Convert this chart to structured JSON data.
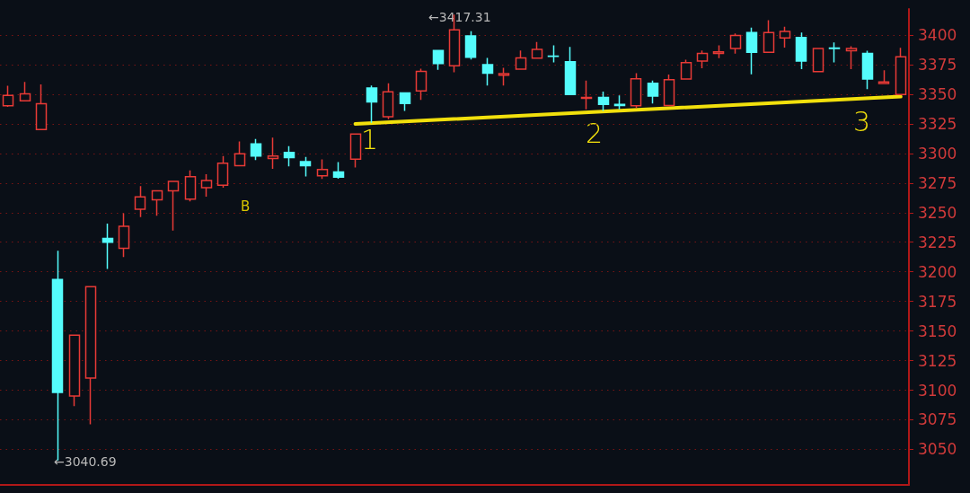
{
  "chart_data": {
    "type": "candlestick",
    "categories": [
      null,
      null,
      null,
      null,
      null,
      null,
      null,
      null,
      null,
      null,
      null,
      null,
      null,
      null,
      null,
      null,
      null,
      null,
      null,
      null,
      null,
      null,
      null,
      null,
      null,
      null,
      null,
      null,
      null,
      null,
      null,
      null,
      null,
      null,
      null,
      null,
      null,
      null,
      null,
      null,
      null,
      null,
      null,
      null,
      null,
      null,
      null,
      null,
      null,
      null,
      null,
      null,
      null,
      null,
      null
    ],
    "ohlc": [
      [
        3340.3,
        3357.2,
        3339.3,
        3349.0
      ],
      [
        3344.5,
        3360.4,
        3344.5,
        3350.3
      ],
      [
        3320.2,
        3358.3,
        3320.2,
        3341.9
      ],
      [
        3193.5,
        3217.8,
        3040.69,
        3098.1
      ],
      [
        3095.0,
        3146.5,
        3086.5,
        3146.5
      ],
      [
        3110.3,
        3187.4,
        3071.2,
        3187.4
      ],
      [
        3228.3,
        3240.8,
        3202.5,
        3224.9
      ],
      [
        3219.9,
        3249.5,
        3212.5,
        3238.4
      ],
      [
        3252.9,
        3272.4,
        3246.3,
        3263.2
      ],
      [
        3260.8,
        3268.5,
        3247.4,
        3268.5
      ],
      [
        3268.5,
        3276.4,
        3234.9,
        3276.4
      ],
      [
        3261.3,
        3285.6,
        3259.5,
        3280.4
      ],
      [
        3271.1,
        3282.5,
        3263.5,
        3277.2
      ],
      [
        3273.2,
        3297.8,
        3271.1,
        3291.7
      ],
      [
        3289.6,
        3310.2,
        3289.6,
        3299.6
      ],
      [
        3308.1,
        3312.3,
        3294.4,
        3297.8
      ],
      [
        3295.7,
        3313.4,
        3287.0,
        3297.8
      ],
      [
        3300.9,
        3306.2,
        3289.1,
        3296.5
      ],
      [
        3293.0,
        3297.0,
        3280.6,
        3289.6
      ],
      [
        3281.2,
        3294.9,
        3278.5,
        3286.4
      ],
      [
        3284.4,
        3292.7,
        3278.6,
        3279.9
      ],
      [
        3295.2,
        3316.3,
        3288.2,
        3316.3
      ],
      [
        3355.3,
        3357.3,
        3325.9,
        3343.5
      ],
      [
        3330.9,
        3359.3,
        3328.9,
        3352.0
      ],
      [
        3351.0,
        3351.0,
        3335.9,
        3342.2
      ],
      [
        3352.8,
        3371.6,
        3345.2,
        3369.3
      ],
      [
        3386.9,
        3386.9,
        3370.6,
        3375.9
      ],
      [
        3374.1,
        3417.31,
        3368.6,
        3404.3
      ],
      [
        3399.2,
        3403.3,
        3379.4,
        3381.2
      ],
      [
        3374.9,
        3380.6,
        3357.3,
        3367.8
      ],
      [
        3366.1,
        3372.4,
        3357.3,
        3367.3
      ],
      [
        3371.1,
        3386.9,
        3371.1,
        3380.6
      ],
      [
        3380.4,
        3394.2,
        3380.4,
        3387.9
      ],
      [
        3382.2,
        3391.2,
        3376.9,
        3381.9
      ],
      [
        3377.4,
        3390.0,
        3349.7,
        3349.7
      ],
      [
        3346.5,
        3361.6,
        3337.2,
        3347.2
      ],
      [
        3347.2,
        3352.3,
        3335.9,
        3341.4
      ],
      [
        3341.4,
        3349.0,
        3337.2,
        3340.4
      ],
      [
        3340.2,
        3367.8,
        3338.4,
        3363.1
      ],
      [
        3359.3,
        3361.6,
        3342.2,
        3348.5
      ],
      [
        3340.4,
        3366.6,
        3340.4,
        3362.3
      ],
      [
        3362.8,
        3379.1,
        3362.8,
        3376.6
      ],
      [
        3378.1,
        3386.9,
        3371.9,
        3384.4
      ],
      [
        3384.4,
        3391.2,
        3380.4,
        3385.7
      ],
      [
        3388.7,
        3401.3,
        3384.2,
        3399.7
      ],
      [
        3402.0,
        3406.3,
        3366.8,
        3385.4
      ],
      [
        3385.4,
        3412.6,
        3385.4,
        3402.0
      ],
      [
        3397.5,
        3407.0,
        3389.4,
        3403.0
      ],
      [
        3398.0,
        3402.0,
        3371.1,
        3378.1
      ],
      [
        3369.1,
        3388.7,
        3369.1,
        3388.7
      ],
      [
        3389.0,
        3393.7,
        3376.9,
        3388.7
      ],
      [
        3386.7,
        3390.5,
        3371.1,
        3388.7
      ],
      [
        3384.4,
        3386.7,
        3354.3,
        3362.8
      ],
      [
        3359.0,
        3370.3,
        3359.0,
        3360.3
      ],
      [
        3349.7,
        3389.2,
        3349.7,
        3381.7
      ]
    ],
    "colors": [
      "#e83a36",
      "#e83a36",
      "#e83a36",
      "#54fcfc",
      "#e83a36",
      "#e83a36",
      "#54fcfc",
      "#e83a36",
      "#e83a36",
      "#e83a36",
      "#e83a36",
      "#e83a36",
      "#e83a36",
      "#e83a36",
      "#e83a36",
      "#54fcfc",
      "#e83a36",
      "#54fcfc",
      "#54fcfc",
      "#e83a36",
      "#54fcfc",
      "#e83a36",
      "#54fcfc",
      "#e83a36",
      "#54fcfc",
      "#e83a36",
      "#54fcfc",
      "#e83a36",
      "#54fcfc",
      "#54fcfc",
      "#e83a36",
      "#e83a36",
      "#e83a36",
      "#54fcfc",
      "#54fcfc",
      "#e83a36",
      "#54fcfc",
      "#54fcfc",
      "#e83a36",
      "#54fcfc",
      "#e83a36",
      "#e83a36",
      "#e83a36",
      "#e83a36",
      "#e83a36",
      "#54fcfc",
      "#e83a36",
      "#e83a36",
      "#54fcfc",
      "#e83a36",
      "#54fcfc",
      "#e83a36",
      "#54fcfc",
      "#e83a36",
      "#e83a36"
    ],
    "series": [
      {
        "type": "line",
        "color": "#f2e00c",
        "values": [
          null,
          null,
          null,
          null,
          null,
          null,
          null,
          null,
          null,
          null,
          null,
          null,
          null,
          null,
          null,
          null,
          null,
          null,
          null,
          null,
          null,
          3324.9,
          null,
          null,
          null,
          null,
          null,
          null,
          null,
          null,
          null,
          null,
          null,
          null,
          null,
          null,
          null,
          null,
          null,
          null,
          null,
          null,
          null,
          null,
          null,
          null,
          null,
          null,
          null,
          null,
          null,
          null,
          null,
          null,
          3348.0
        ]
      }
    ],
    "ylim": [
      3020,
      3422
    ],
    "yticks": [
      3050,
      3075,
      3100,
      3125,
      3150,
      3175,
      3200,
      3225,
      3250,
      3275,
      3300,
      3325,
      3350,
      3375,
      3400
    ],
    "grid": "y",
    "tick_labels": "y",
    "annotations": [
      "←3417.31",
      "←3040.69",
      "B",
      "1",
      "2",
      "3"
    ]
  }
}
